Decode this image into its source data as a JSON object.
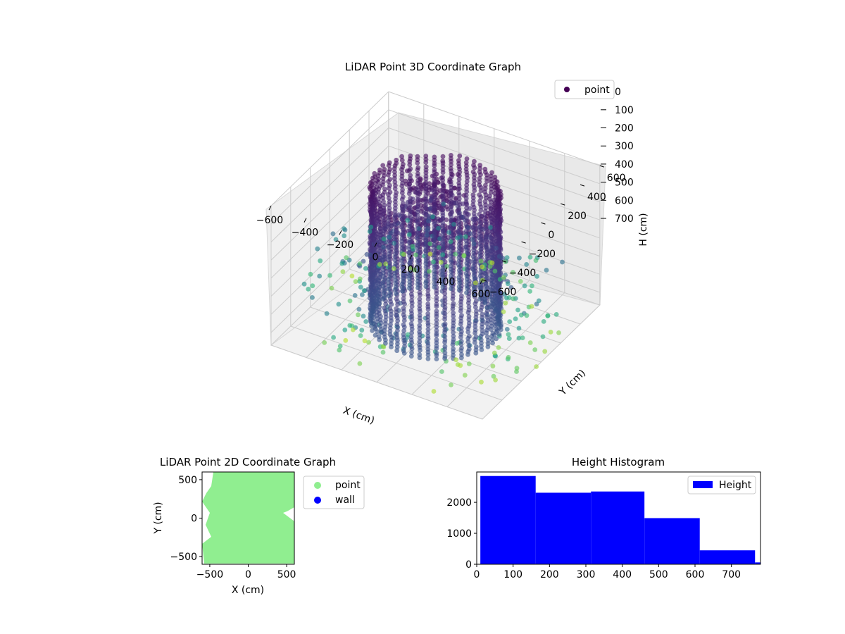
{
  "chart_data": [
    {
      "type": "scatter",
      "projection": "3d",
      "title": "LiDAR Point 3D Coordinate Graph",
      "xlabel": "X (cm)",
      "ylabel": "Y (cm)",
      "zlabel": "H (cm)",
      "xticks": [
        "−600",
        "−400",
        "−200",
        "0",
        "200",
        "400",
        "600"
      ],
      "yticks": [
        "−600",
        "−400",
        "−200",
        "0",
        "200",
        "400",
        "600"
      ],
      "zticks": [
        "0",
        "100",
        "200",
        "300",
        "400",
        "500",
        "600",
        "700"
      ],
      "xlim": [
        -600,
        600
      ],
      "ylim": [
        -600,
        600
      ],
      "zlim": [
        0,
        770
      ],
      "z_inverted": true,
      "colormap": "viridis",
      "legend": {
        "entries": [
          "point"
        ],
        "placement": "top-right",
        "marker_color": "#440154"
      },
      "grid": true,
      "description_points": {
        "wall_radius": 320,
        "wall_height_range": [
          0,
          770
        ],
        "wall_columns": 48,
        "outlier_points_shown": true
      }
    },
    {
      "type": "scatter",
      "title": "LiDAR Point 2D Coordinate Graph",
      "xlabel": "X (cm)",
      "ylabel": "Y (cm)",
      "xticks": [
        "−500",
        "0",
        "500"
      ],
      "yticks": [
        "500",
        "0",
        "−500"
      ],
      "xlim": [
        -600,
        600
      ],
      "ylim": [
        -600,
        600
      ],
      "series": [
        {
          "name": "point",
          "color": "#90ee90"
        },
        {
          "name": "wall",
          "color": "#0000ff"
        }
      ],
      "legend": {
        "placement": "outside-right"
      }
    },
    {
      "type": "bar",
      "subtype": "histogram",
      "title": "Height Histogram",
      "xticks": [
        "0",
        "100",
        "200",
        "300",
        "400",
        "500",
        "600",
        "700"
      ],
      "yticks": [
        "0",
        "1000",
        "2000"
      ],
      "xlim": [
        0,
        780
      ],
      "ylim": [
        0,
        2980
      ],
      "bins": [
        {
          "x0": 10,
          "x1": 162,
          "count": 2850
        },
        {
          "x0": 162,
          "x1": 314,
          "count": 2310
        },
        {
          "x0": 314,
          "x1": 461,
          "count": 2350
        },
        {
          "x0": 461,
          "x1": 613,
          "count": 1490
        },
        {
          "x0": 613,
          "x1": 765,
          "count": 450
        },
        {
          "x0": 765,
          "x1": 780,
          "count": 60
        }
      ],
      "color": "#0000ff",
      "legend": {
        "entries": [
          "Height"
        ],
        "placement": "top-right"
      }
    }
  ]
}
